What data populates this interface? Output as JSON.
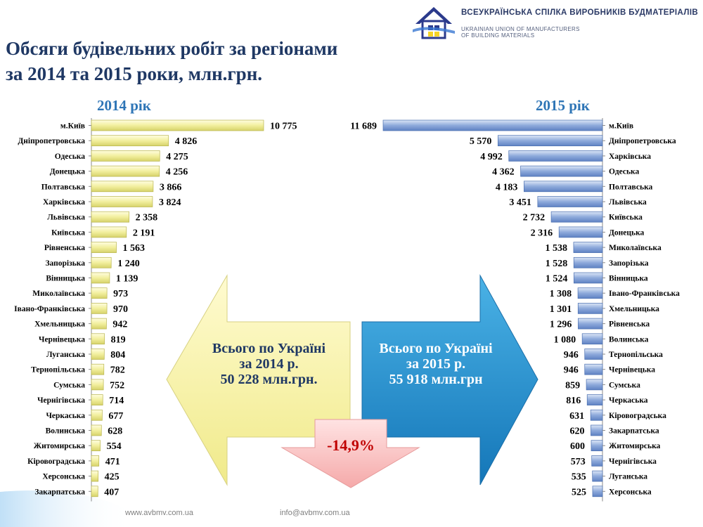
{
  "header": {
    "org_ua": "ВСЕУКРАЇНСЬКА СПІЛКА ВИРОБНИКІВ БУДМАТЕРІАЛІВ",
    "org_en_1": "UKRAINIAN UNION OF MANUFACTURERS",
    "org_en_2": "OF BUILDING MATERIALS"
  },
  "title": {
    "line1": "Обсяги будівельних робіт за регіонами",
    "line2": "за 2014 та 2015 роки, млн.грн."
  },
  "summary": {
    "total_2014": [
      "Всього по Україні",
      "за 2014 р.",
      "50 228 млн.грн."
    ],
    "total_2015": [
      "Всього по Україні",
      "за 2015 р.",
      "55 918 млн.грн"
    ],
    "change": "-14,9%"
  },
  "footer": {
    "website": "www.avbmv.com.ua",
    "email": "info@avbmv.com.ua"
  },
  "colors": {
    "bar_2014": "#f2ef9e",
    "bar_2015": "#8eaadb",
    "title": "#1f3864",
    "year_label": "#2e75b6",
    "change_text": "#c00000"
  },
  "chart_data": [
    {
      "type": "bar",
      "orientation": "horizontal",
      "title": "2014 рік",
      "categories": [
        "м.Київ",
        "Дніпропетровська",
        "Одеська",
        "Донецька",
        "Полтавська",
        "Харківська",
        "Львівська",
        "Київська",
        "Рівненська",
        "Запорізька",
        "Вінницька",
        "Миколаївська",
        "Івано-Франківська",
        "Хмельницька",
        "Чернівецька",
        "Луганська",
        "Тернопільська",
        "Сумська",
        "Чернігівська",
        "Черкаська",
        "Волинська",
        "Житомирська",
        "Кіровоградська",
        "Херсонська",
        "Закарпатська"
      ],
      "values": [
        10775,
        4826,
        4275,
        4256,
        3866,
        3824,
        2358,
        2191,
        1563,
        1240,
        1139,
        973,
        970,
        942,
        819,
        804,
        782,
        752,
        714,
        677,
        628,
        554,
        471,
        425,
        407
      ],
      "labels": [
        "10 775",
        "4 826",
        "4 275",
        "4 256",
        "3 866",
        "3 824",
        "2 358",
        "2 191",
        "1 563",
        "1 240",
        "1 139",
        "973",
        "970",
        "942",
        "819",
        "804",
        "782",
        "752",
        "714",
        "677",
        "628",
        "554",
        "471",
        "425",
        "407"
      ]
    },
    {
      "type": "bar",
      "orientation": "horizontal",
      "title": "2015 рік",
      "categories": [
        "м.Київ",
        "Дніпропетровська",
        "Харківська",
        "Одеська",
        "Полтавська",
        "Львівська",
        "Київська",
        "Донецька",
        "Миколаївська",
        "Запорізька",
        "Вінницька",
        "Івано-Франківська",
        "Хмельницька",
        "Рівненська",
        "Волинська",
        "Тернопільська",
        "Чернівецька",
        "Сумська",
        "Черкаська",
        "Кіровоградська",
        "Закарпатська",
        "Житомирська",
        "Чернігівська",
        "Луганська",
        "Херсонська"
      ],
      "values": [
        11689,
        5570,
        4992,
        4362,
        4183,
        3451,
        2732,
        2316,
        1538,
        1528,
        1524,
        1308,
        1301,
        1296,
        1080,
        946,
        946,
        859,
        816,
        631,
        620,
        600,
        573,
        535,
        525
      ],
      "labels": [
        "11 689",
        "5 570",
        "4 992",
        "4 362",
        "4 183",
        "3 451",
        "2 732",
        "2 316",
        "1 538",
        "1 528",
        "1 524",
        "1 308",
        "1 301",
        "1 296",
        "1 080",
        "946",
        "946",
        "859",
        "816",
        "631",
        "620",
        "600",
        "573",
        "535",
        "525"
      ]
    }
  ]
}
